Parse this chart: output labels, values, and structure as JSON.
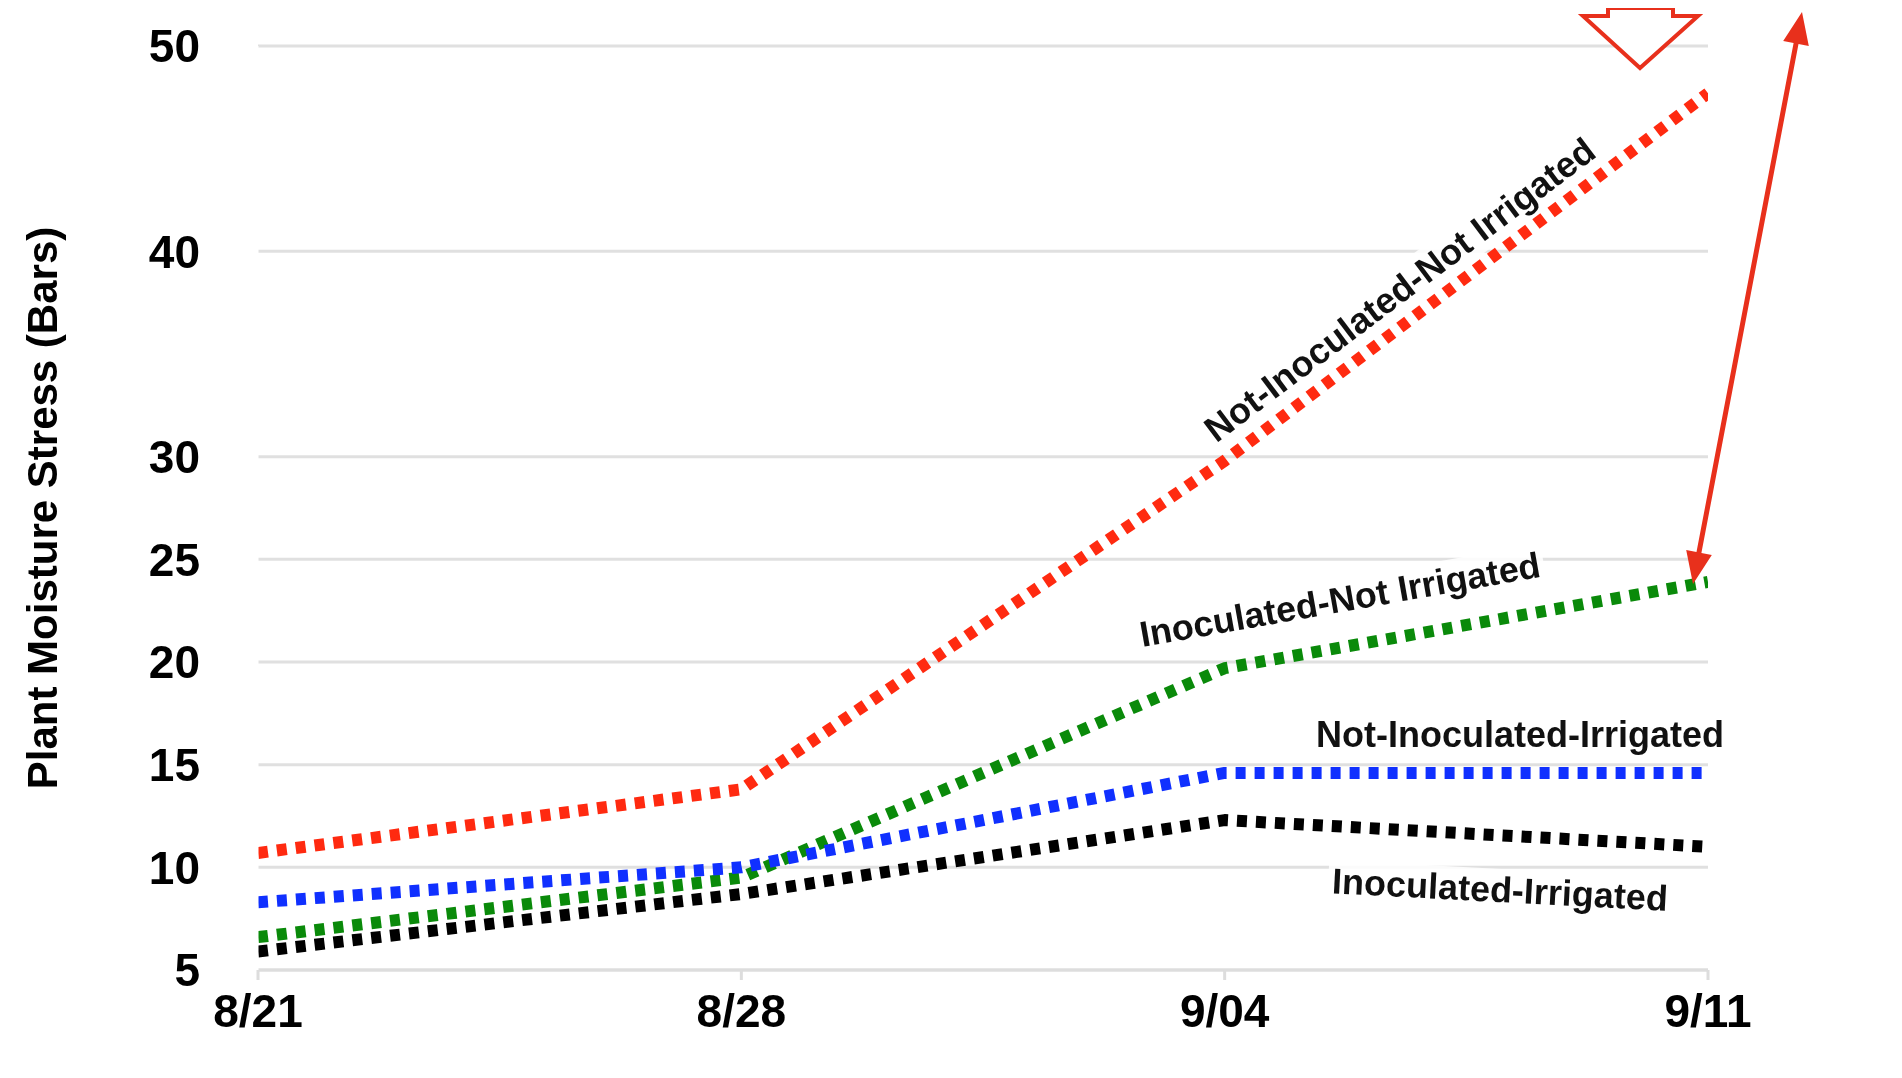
{
  "chart_data": {
    "type": "line",
    "ylabel": "Plant Moisture Stress (Bars)",
    "categories": [
      "8/21",
      "8/28",
      "9/04",
      "9/11"
    ],
    "ylim": [
      5,
      50
    ],
    "yticks": [
      5,
      10,
      15,
      20,
      25,
      30,
      40,
      50
    ],
    "grid": "y",
    "line_style": "dotted",
    "marker": "none",
    "series": [
      {
        "name": "Not-Inoculated-Not Irrigated",
        "color": "#ff2a10",
        "values": [
          10.7,
          13.8,
          29.8,
          47.7
        ]
      },
      {
        "name": "Inoculated-Not Irrigated",
        "color": "#0a8a0a",
        "values": [
          6.6,
          9.5,
          19.7,
          23.9
        ]
      },
      {
        "name": "Not-Inoculated-Irrigated",
        "color": "#1030ff",
        "values": [
          8.3,
          10,
          14.6,
          14.6
        ]
      },
      {
        "name": "Inoculated-Irrigated",
        "color": "#000000",
        "values": [
          5.9,
          8.7,
          12.3,
          11.0
        ]
      }
    ]
  }
}
